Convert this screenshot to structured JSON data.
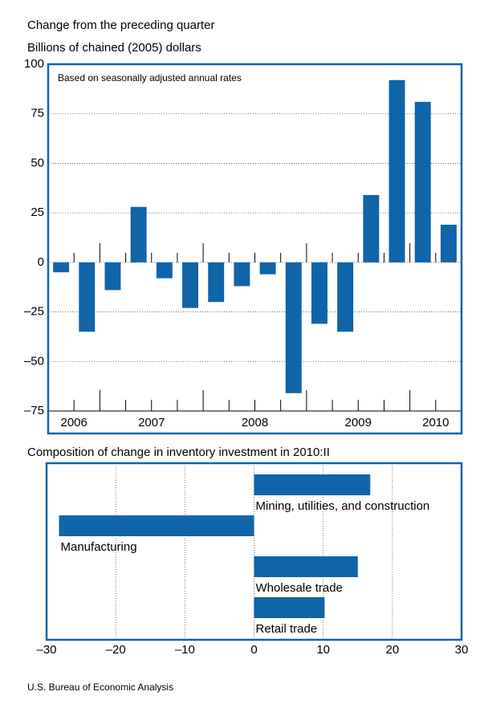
{
  "chart_data": [
    {
      "type": "bar",
      "title": "Change from the preceding quarter",
      "subtitle": "Billions of chained (2005) dollars",
      "annotation": "Based on seasonally adjusted annual rates",
      "categories": [
        "2006",
        null,
        "2007",
        null,
        null,
        null,
        "2008",
        null,
        null,
        null,
        "2009",
        null,
        null,
        null,
        "2010",
        null
      ],
      "values": [
        -5,
        -35,
        -14,
        28,
        -8,
        -23,
        -20,
        -12,
        -6,
        -66,
        -31,
        -35,
        34,
        92,
        81,
        19
      ],
      "color": "#1064a8",
      "ylim": [
        -75,
        100
      ],
      "yticks": [
        {
          "value": -75,
          "label": "–75"
        },
        {
          "value": -50,
          "label": "–50"
        },
        {
          "value": -25,
          "label": "–25"
        },
        0,
        25,
        50,
        75,
        100
      ],
      "grid": true
    },
    {
      "type": "hbar",
      "title": "Composition of change in inventory investment in 2010:II",
      "categories": [
        "Mining, utilities, and construction",
        "Manufacturing",
        "Wholesale trade",
        "Retail trade"
      ],
      "values": [
        16.8,
        -28.2,
        15,
        10.2
      ],
      "color": "#1064a8",
      "xlim": [
        -30,
        30
      ],
      "xticks": [
        {
          "value": -30,
          "label": "–30"
        },
        {
          "value": -20,
          "label": "–20"
        },
        {
          "value": -10,
          "label": "–10"
        },
        0,
        10,
        20,
        30
      ],
      "grid": true
    }
  ],
  "source": "U.S. Bureau of Economic Analysis"
}
